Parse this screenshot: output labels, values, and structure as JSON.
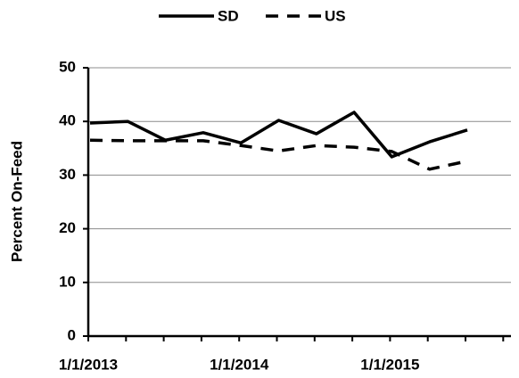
{
  "chart_data": {
    "type": "line",
    "y_label": "Percent On-Feed",
    "categories": [
      "1/1/2013",
      null,
      null,
      null,
      "1/1/2014",
      null,
      null,
      null,
      "1/1/2015",
      null,
      null
    ],
    "series": [
      {
        "name": "SD",
        "color": "#000000",
        "line_style": "solid",
        "values": [
          39.7,
          40.0,
          36.5,
          37.9,
          36.0,
          40.2,
          37.7,
          41.7,
          33.4,
          36.2,
          38.4
        ]
      },
      {
        "name": "US",
        "color": "#000000",
        "line_style": "dashed",
        "values": [
          36.5,
          36.4,
          36.4,
          36.4,
          35.5,
          34.5,
          35.5,
          35.2,
          34.4,
          31.1,
          32.6
        ]
      }
    ],
    "ylim": [
      0,
      50
    ],
    "yticks": [
      0,
      10,
      20,
      30,
      40,
      50
    ],
    "grid": true,
    "legend": "top"
  }
}
